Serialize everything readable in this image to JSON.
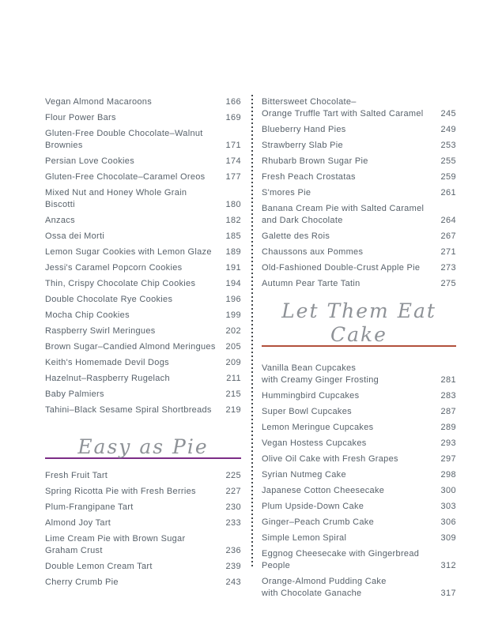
{
  "page": {
    "background_color": "#ffffff",
    "text_color": "#58626b",
    "divider_dot_color": "#43484c"
  },
  "columns": {
    "left": {
      "sections": [
        {
          "entries": [
            {
              "name": "Vegan Almond Macaroons",
              "page": "166"
            },
            {
              "name": "Flour Power Bars",
              "page": "169"
            },
            {
              "name": "Gluten-Free Double Chocolate–Walnut Brownies",
              "page": "171"
            },
            {
              "name": "Persian Love Cookies",
              "page": "174"
            },
            {
              "name": "Gluten-Free Chocolate–Caramel Oreos",
              "page": "177"
            },
            {
              "name": "Mixed Nut and Honey Whole Grain Biscotti",
              "page": "180"
            },
            {
              "name": "Anzacs",
              "page": "182"
            },
            {
              "name": "Ossa dei Morti",
              "page": "185"
            },
            {
              "name": "Lemon Sugar Cookies with Lemon Glaze",
              "page": "189"
            },
            {
              "name": "Jessi's Caramel Popcorn Cookies",
              "page": "191"
            },
            {
              "name": "Thin, Crispy Chocolate Chip Cookies",
              "page": "194"
            },
            {
              "name": "Double Chocolate Rye Cookies",
              "page": "196"
            },
            {
              "name": "Mocha Chip Cookies",
              "page": "199"
            },
            {
              "name": "Raspberry Swirl Meringues",
              "page": "202"
            },
            {
              "name": "Brown Sugar–Candied Almond Meringues",
              "page": "205"
            },
            {
              "name": "Keith's Homemade Devil Dogs",
              "page": "209"
            },
            {
              "name": "Hazelnut–Raspberry Rugelach",
              "page": "211"
            },
            {
              "name": "Baby Palmiers",
              "page": "215"
            },
            {
              "name": "Tahini–Black Sesame Spiral Shortbreads",
              "page": "219"
            }
          ]
        },
        {
          "header": {
            "title": "Easy as Pie",
            "accent_color": "#7c2d87"
          },
          "entries": [
            {
              "name": "Fresh Fruit Tart",
              "page": "225"
            },
            {
              "name": "Spring Ricotta Pie with Fresh Berries",
              "page": "227"
            },
            {
              "name": "Plum-Frangipane Tart",
              "page": "230"
            },
            {
              "name": "Almond Joy Tart",
              "page": "233"
            },
            {
              "name": "Lime Cream Pie with Brown Sugar\nGraham Crust",
              "page": "236"
            },
            {
              "name": "Double Lemon Cream Tart",
              "page": "239"
            },
            {
              "name": "Cherry Crumb Pie",
              "page": "243"
            }
          ]
        }
      ]
    },
    "right": {
      "sections": [
        {
          "entries": [
            {
              "name": "Bittersweet Chocolate–\nOrange Truffle Tart with Salted Caramel",
              "page": "245"
            },
            {
              "name": "Blueberry Hand Pies",
              "page": "249"
            },
            {
              "name": "Strawberry Slab Pie",
              "page": "253"
            },
            {
              "name": "Rhubarb Brown Sugar Pie",
              "page": "255"
            },
            {
              "name": "Fresh Peach Crostatas",
              "page": "259"
            },
            {
              "name": "S'mores Pie",
              "page": "261"
            },
            {
              "name": "Banana Cream Pie with Salted Caramel\nand Dark Chocolate",
              "page": "264"
            },
            {
              "name": "Galette des Rois",
              "page": "267"
            },
            {
              "name": "Chaussons aux Pommes",
              "page": "271"
            },
            {
              "name": "Old-Fashioned Double-Crust Apple Pie",
              "page": "273"
            },
            {
              "name": "Autumn Pear Tarte Tatin",
              "page": "275"
            }
          ]
        },
        {
          "header": {
            "title": "Let Them Eat Cake",
            "accent_color": "#b2513c"
          },
          "entries": [
            {
              "name": "Vanilla Bean Cupcakes\nwith Creamy Ginger Frosting",
              "page": "281"
            },
            {
              "name": "Hummingbird Cupcakes",
              "page": "283"
            },
            {
              "name": "Super Bowl Cupcakes",
              "page": "287"
            },
            {
              "name": "Lemon Meringue Cupcakes",
              "page": "289"
            },
            {
              "name": "Vegan Hostess Cupcakes",
              "page": "293"
            },
            {
              "name": "Olive Oil Cake with Fresh Grapes",
              "page": "297"
            },
            {
              "name": "Syrian Nutmeg Cake",
              "page": "298"
            },
            {
              "name": "Japanese Cotton Cheesecake",
              "page": "300"
            },
            {
              "name": "Plum Upside-Down Cake",
              "page": "303"
            },
            {
              "name": "Ginger–Peach Crumb Cake",
              "page": "306"
            },
            {
              "name": "Simple Lemon Spiral",
              "page": "309"
            },
            {
              "name": "Eggnog Cheesecake with Gingerbread People",
              "page": "312"
            },
            {
              "name": "Orange-Almond Pudding Cake\nwith Chocolate Ganache",
              "page": "317"
            }
          ]
        }
      ]
    }
  }
}
